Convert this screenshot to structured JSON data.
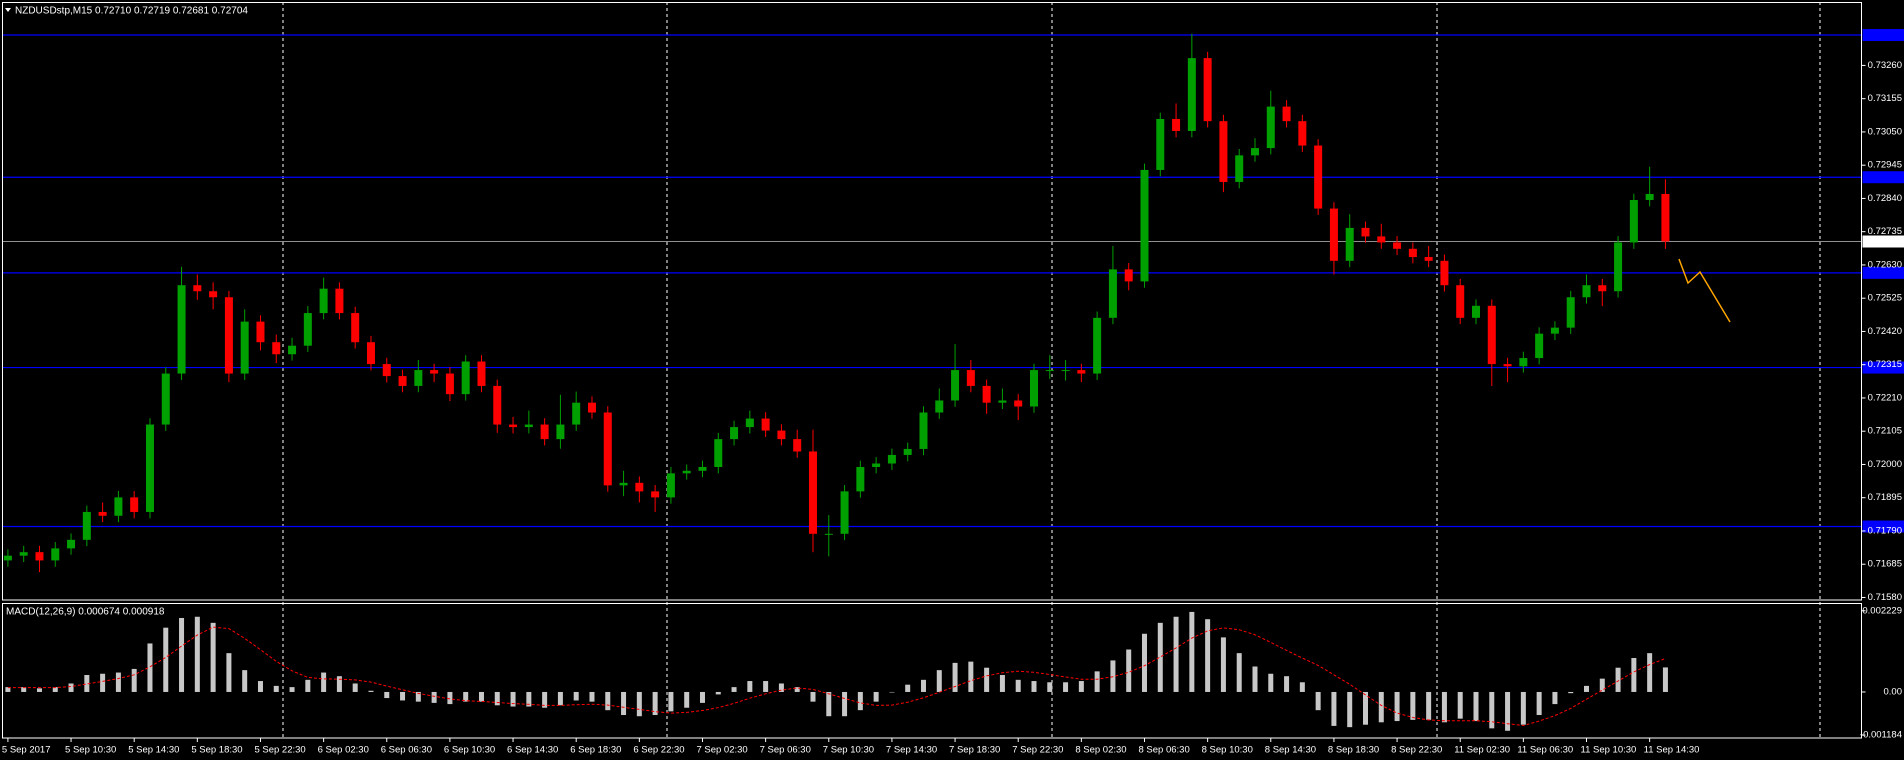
{
  "chart_data": [
    {
      "type": "candlestick",
      "title": "NZDUSDstp,M15  0.72710 0.72719 0.72681 0.72704",
      "categories": [
        "5 Sep 2017",
        null,
        null,
        null,
        "5 Sep 10:30",
        null,
        null,
        null,
        "5 Sep 14:30",
        null,
        null,
        null,
        "5 Sep 18:30",
        null,
        null,
        null,
        "5 Sep 22:30",
        null,
        null,
        null,
        "6 Sep 02:30",
        null,
        null,
        null,
        "6 Sep 06:30",
        null,
        null,
        null,
        "6 Sep 10:30",
        null,
        null,
        null,
        "6 Sep 14:30",
        null,
        null,
        null,
        "6 Sep 18:30",
        null,
        null,
        null,
        "6 Sep 22:30",
        null,
        null,
        null,
        "7 Sep 02:30",
        null,
        null,
        null,
        "7 Sep 06:30",
        null,
        null,
        null,
        "7 Sep 10:30",
        null,
        null,
        null,
        "7 Sep 14:30",
        null,
        null,
        null,
        "7 Sep 18:30",
        null,
        null,
        null,
        "7 Sep 22:30",
        null,
        null,
        null,
        "8 Sep 02:30",
        null,
        null,
        null,
        "8 Sep 06:30",
        null,
        null,
        null,
        "8 Sep 10:30",
        null,
        null,
        null,
        "8 Sep 14:30",
        null,
        null,
        null,
        "8 Sep 18:30",
        null,
        null,
        null,
        "8 Sep 22:30",
        null,
        null,
        null,
        "11 Sep 02:30",
        null,
        null,
        null,
        "11 Sep 06:30",
        null,
        null,
        null,
        "11 Sep 10:30",
        null,
        null,
        null,
        "11 Sep 14:30",
        null
      ],
      "open": [
        0.71697,
        0.71712,
        0.71723,
        0.71697,
        0.71735,
        0.71762,
        0.7185,
        0.71838,
        0.71896,
        0.7185,
        0.72126,
        0.72287,
        0.72566,
        0.72547,
        0.72528,
        0.72287,
        0.72451,
        0.72386,
        0.72348,
        0.72375,
        0.72478,
        0.72555,
        0.72478,
        0.72386,
        0.72317,
        0.72279,
        0.72248,
        0.72298,
        0.72287,
        0.72222,
        0.72325,
        0.72248,
        0.72126,
        0.72118,
        0.72126,
        0.7208,
        0.72126,
        0.72195,
        0.72164,
        0.71934,
        0.71942,
        0.71915,
        0.71896,
        0.71972,
        0.7198,
        0.71992,
        0.7208,
        0.72118,
        0.72145,
        0.72107,
        0.7208,
        0.72041,
        0.71781,
        0.71781,
        0.71915,
        0.71992,
        0.72003,
        0.7203,
        0.72049,
        0.72164,
        0.72202,
        0.72298,
        0.72248,
        0.72195,
        0.72202,
        0.72183,
        0.72298,
        0.72298,
        0.72298,
        0.72287,
        0.72463,
        0.72616,
        0.72578,
        0.7293,
        0.73091,
        0.73053,
        0.73283,
        0.73084,
        0.72892,
        0.72976,
        0.72999,
        0.7313,
        0.73084,
        0.73007,
        0.72808,
        0.72643,
        0.72747,
        0.7272,
        0.72701,
        0.72681,
        0.72655,
        0.72643,
        0.72566,
        0.72463,
        0.72501,
        0.72317,
        0.7231,
        0.72336,
        0.72413,
        0.72432,
        0.72528,
        0.72566,
        0.72547,
        0.72701,
        0.72835,
        0.72854
      ],
      "high": [
        0.71732,
        0.71743,
        0.71743,
        0.71755,
        0.71782,
        0.7187,
        0.7188,
        0.71916,
        0.71916,
        0.72146,
        0.72307,
        0.72624,
        0.726,
        0.72575,
        0.72548,
        0.7249,
        0.72471,
        0.7241,
        0.724,
        0.725,
        0.7259,
        0.72575,
        0.72498,
        0.72406,
        0.72337,
        0.72299,
        0.7233,
        0.72318,
        0.72307,
        0.72345,
        0.72345,
        0.72268,
        0.7215,
        0.7217,
        0.72146,
        0.7222,
        0.7223,
        0.72215,
        0.72184,
        0.7198,
        0.71962,
        0.71935,
        0.71992,
        0.72,
        0.72012,
        0.721,
        0.72138,
        0.7217,
        0.72165,
        0.72127,
        0.7211,
        0.7211,
        0.7184,
        0.71935,
        0.72012,
        0.72023,
        0.7205,
        0.72069,
        0.72184,
        0.7224,
        0.7238,
        0.7233,
        0.72268,
        0.7224,
        0.72222,
        0.72318,
        0.72345,
        0.7233,
        0.72318,
        0.72483,
        0.7269,
        0.72636,
        0.7295,
        0.73111,
        0.7314,
        0.7336,
        0.73303,
        0.73104,
        0.72996,
        0.7303,
        0.7318,
        0.7315,
        0.73104,
        0.73027,
        0.72828,
        0.7279,
        0.72767,
        0.7276,
        0.72721,
        0.72701,
        0.7269,
        0.72663,
        0.72586,
        0.72521,
        0.72521,
        0.72337,
        0.72356,
        0.72433,
        0.72452,
        0.72548,
        0.726,
        0.72586,
        0.72721,
        0.72855,
        0.7294,
        0.729
      ],
      "low": [
        0.71677,
        0.71692,
        0.7166,
        0.71677,
        0.71715,
        0.71742,
        0.71818,
        0.71818,
        0.7183,
        0.7183,
        0.72106,
        0.72267,
        0.7252,
        0.7249,
        0.7226,
        0.72267,
        0.7236,
        0.7232,
        0.72328,
        0.72355,
        0.72458,
        0.72458,
        0.72366,
        0.72297,
        0.72259,
        0.72228,
        0.72228,
        0.7226,
        0.722,
        0.72202,
        0.72228,
        0.721,
        0.72098,
        0.72098,
        0.7206,
        0.7205,
        0.72106,
        0.72144,
        0.71914,
        0.719,
        0.7188,
        0.7185,
        0.71876,
        0.71952,
        0.7196,
        0.71972,
        0.7206,
        0.72098,
        0.72087,
        0.7206,
        0.72021,
        0.71723,
        0.7171,
        0.71761,
        0.71895,
        0.71972,
        0.71983,
        0.7201,
        0.72029,
        0.72144,
        0.72182,
        0.72228,
        0.7216,
        0.72175,
        0.7214,
        0.72163,
        0.7227,
        0.72265,
        0.7226,
        0.72267,
        0.72443,
        0.7255,
        0.72558,
        0.7291,
        0.73033,
        0.73033,
        0.73064,
        0.7286,
        0.72872,
        0.72956,
        0.72979,
        0.73064,
        0.72987,
        0.72788,
        0.726,
        0.72623,
        0.727,
        0.72681,
        0.72661,
        0.72635,
        0.72623,
        0.72546,
        0.72443,
        0.72443,
        0.72248,
        0.7226,
        0.7229,
        0.72316,
        0.72393,
        0.72412,
        0.72508,
        0.725,
        0.72527,
        0.72681,
        0.72815,
        0.72681
      ],
      "close": [
        0.71712,
        0.71723,
        0.71697,
        0.71735,
        0.71762,
        0.7185,
        0.71838,
        0.71896,
        0.7185,
        0.72126,
        0.72287,
        0.72566,
        0.72547,
        0.72528,
        0.72287,
        0.72451,
        0.72386,
        0.72348,
        0.72375,
        0.72478,
        0.72555,
        0.72478,
        0.72386,
        0.72317,
        0.72279,
        0.72248,
        0.72298,
        0.72287,
        0.72222,
        0.72325,
        0.72248,
        0.72126,
        0.72118,
        0.72126,
        0.7208,
        0.72126,
        0.72195,
        0.72164,
        0.71934,
        0.71942,
        0.71915,
        0.71896,
        0.71972,
        0.7198,
        0.71992,
        0.7208,
        0.72118,
        0.72145,
        0.72107,
        0.7208,
        0.72041,
        0.71781,
        0.71781,
        0.71915,
        0.71992,
        0.72003,
        0.7203,
        0.72049,
        0.72164,
        0.72202,
        0.72298,
        0.72248,
        0.72195,
        0.72202,
        0.72183,
        0.72298,
        0.72298,
        0.72298,
        0.72287,
        0.72463,
        0.72616,
        0.72578,
        0.7293,
        0.73091,
        0.73053,
        0.73283,
        0.73084,
        0.72892,
        0.72976,
        0.72999,
        0.7313,
        0.73084,
        0.73007,
        0.72808,
        0.72643,
        0.72747,
        0.7272,
        0.72701,
        0.72681,
        0.72655,
        0.72643,
        0.72566,
        0.72463,
        0.72501,
        0.72317,
        0.7231,
        0.72336,
        0.72413,
        0.72432,
        0.72528,
        0.72566,
        0.72547,
        0.72701,
        0.72835,
        0.72854,
        0.72704
      ],
      "up_color": "#00a000",
      "down_color": "#ff0000",
      "ylim": [
        0.71572,
        0.73459
      ],
      "yticks": [
        {
          "value": 0.7326,
          "label": "0.73260"
        },
        0.73155,
        {
          "value": 0.7305,
          "label": "0.73050"
        },
        0.72945,
        {
          "value": 0.7284,
          "label": "0.72840"
        },
        0.72735,
        {
          "value": 0.7263,
          "label": "0.72630"
        },
        0.72525,
        {
          "value": 0.7242,
          "label": "0.72420"
        },
        0.72315,
        {
          "value": 0.7221,
          "label": "0.72210"
        },
        0.72105,
        {
          "value": 0.72,
          "label": "0.72000"
        },
        0.71895,
        {
          "value": 0.7179,
          "label": "0.71790"
        },
        0.71685,
        {
          "value": 0.7158,
          "label": "0.71580"
        }
      ],
      "levels": [
        0.73356,
        0.72907,
        0.72605,
        0.72306,
        0.71804
      ],
      "level_color": "#0000ff",
      "current_price": 0.72704
    },
    {
      "type": "macd",
      "title": "MACD(12,26,9) 0.000674 0.000918",
      "values": [
        0.000133,
        0.000133,
        0.0001,
        0.000133,
        0.000233,
        0.000466,
        0.0005,
        0.000533,
        0.000633,
        0.001332,
        0.001765,
        0.002031,
        0.002065,
        0.001898,
        0.001066,
        0.000599,
        0.0003,
        0.000167,
        0.000133,
        0.000333,
        0.000533,
        0.000433,
        0.000233,
        3.3e-05,
        -0.000167,
        -0.000233,
        -0.000266,
        -0.0003,
        -0.000333,
        -0.000266,
        -0.000266,
        -0.000366,
        -0.0004,
        -0.0004,
        -0.000433,
        -0.000366,
        -0.000233,
        -0.000266,
        -0.0005,
        -0.000633,
        -0.000666,
        -0.000633,
        -0.000533,
        -0.000433,
        -0.0003,
        -6.7e-05,
        0.000133,
        0.0003,
        0.0003,
        0.000233,
        0.000133,
        -0.000266,
        -0.000666,
        -0.000666,
        -0.0005,
        -0.000266,
        0,
        0.0002,
        0.000333,
        0.000599,
        0.000799,
        0.000833,
        0.000666,
        0.000466,
        0.000333,
        0.0003,
        0.000266,
        0.000266,
        0.0003,
        0.000566,
        0.000866,
        0.001166,
        0.001598,
        0.001898,
        0.002065,
        0.002198,
        0.001998,
        0.001499,
        0.001066,
        0.000699,
        0.0005,
        0.000433,
        0.000266,
        -0.0005,
        -0.000932,
        -0.000966,
        -0.000899,
        -0.000833,
        -0.000799,
        -0.000766,
        -0.000766,
        -0.000833,
        -0.000733,
        -0.000799,
        -0.000999,
        -0.001066,
        -0.000899,
        -0.000633,
        -0.000333,
        -3.3e-05,
        0.000167,
        0.000366,
        0.000666,
        0.000932,
        0.001066,
        0.000674
      ],
      "signal": [
        0.00012,
        0.00012,
        0.00012,
        0.00012,
        0.00015,
        0.00022,
        0.00029,
        0.00037,
        0.00047,
        0.00069,
        0.00095,
        0.00126,
        0.00156,
        0.00178,
        0.00174,
        0.00147,
        0.00116,
        0.00084,
        0.00058,
        0.0004,
        0.00036,
        0.00035,
        0.00033,
        0.00027,
        0.00016,
        6e-05,
        -4e-05,
        -0.00012,
        -0.00019,
        -0.00024,
        -0.00026,
        -0.00029,
        -0.00032,
        -0.00034,
        -0.00037,
        -0.00037,
        -0.00035,
        -0.00034,
        -0.00036,
        -0.00042,
        -0.00048,
        -0.00054,
        -0.00058,
        -0.00056,
        -0.00051,
        -0.00043,
        -0.00031,
        -0.00017,
        -5e-05,
        5e-05,
        0.00011,
        7e-05,
        -5e-05,
        -0.00018,
        -0.0003,
        -0.00037,
        -0.00036,
        -0.00028,
        -0.00016,
        -1e-05,
        0.00015,
        0.00031,
        0.00044,
        0.00053,
        0.00057,
        0.00054,
        0.00048,
        0.00041,
        0.00035,
        0.00035,
        0.00042,
        0.00054,
        0.00072,
        0.00096,
        0.00121,
        0.00148,
        0.00168,
        0.00176,
        0.00171,
        0.00157,
        0.00136,
        0.00114,
        0.00093,
        0.00073,
        0.00047,
        0.00021,
        -8e-05,
        -0.00037,
        -0.00058,
        -0.0007,
        -0.00077,
        -0.00079,
        -0.00079,
        -0.00079,
        -0.00082,
        -0.00087,
        -0.00092,
        -0.0008,
        -0.00065,
        -0.00045,
        -0.0002,
        5e-05,
        0.0003,
        0.00055,
        0.00075,
        0.000918
      ],
      "color": "#c8c8c8",
      "signal_color": "#ff0000",
      "ylim": [
        -0.001264,
        0.002429
      ],
      "yticks": [
        0.002229,
        {
          "value": 0,
          "label": "0.00"
        },
        -0.001184
      ]
    }
  ]
}
